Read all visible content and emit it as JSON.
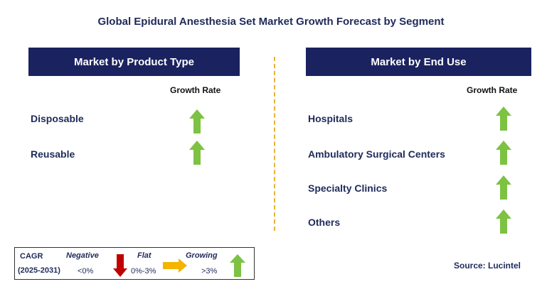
{
  "title": "Global Epidural Anesthesia Set Market Growth Forecast by Segment",
  "left_panel": {
    "header": "Market by Product Type",
    "growth_label": "Growth Rate",
    "items": [
      {
        "label": "Disposable",
        "trend": "growing"
      },
      {
        "label": "Reusable",
        "trend": "growing"
      }
    ]
  },
  "right_panel": {
    "header": "Market by End Use",
    "growth_label": "Growth Rate",
    "items": [
      {
        "label": "Hospitals",
        "trend": "growing"
      },
      {
        "label": "Ambulatory Surgical Centers",
        "trend": "growing"
      },
      {
        "label": "Specialty Clinics",
        "trend": "growing"
      },
      {
        "label": "Others",
        "trend": "growing"
      }
    ]
  },
  "legend": {
    "cagr_label": "CAGR",
    "period": "(2025-2031)",
    "negative_label": "Negative",
    "negative_value": "<0%",
    "flat_label": "Flat",
    "flat_value": "0%-3%",
    "growing_label": "Growing",
    "growing_value": ">3%"
  },
  "source": "Source: Lucintel",
  "colors": {
    "header_bg": "#1a2260",
    "title_text": "#1f2a5a",
    "up_arrow": "#7dc242",
    "down_arrow": "#c00000",
    "flat_arrow": "#f4b400",
    "divider": "#e8b23a"
  }
}
